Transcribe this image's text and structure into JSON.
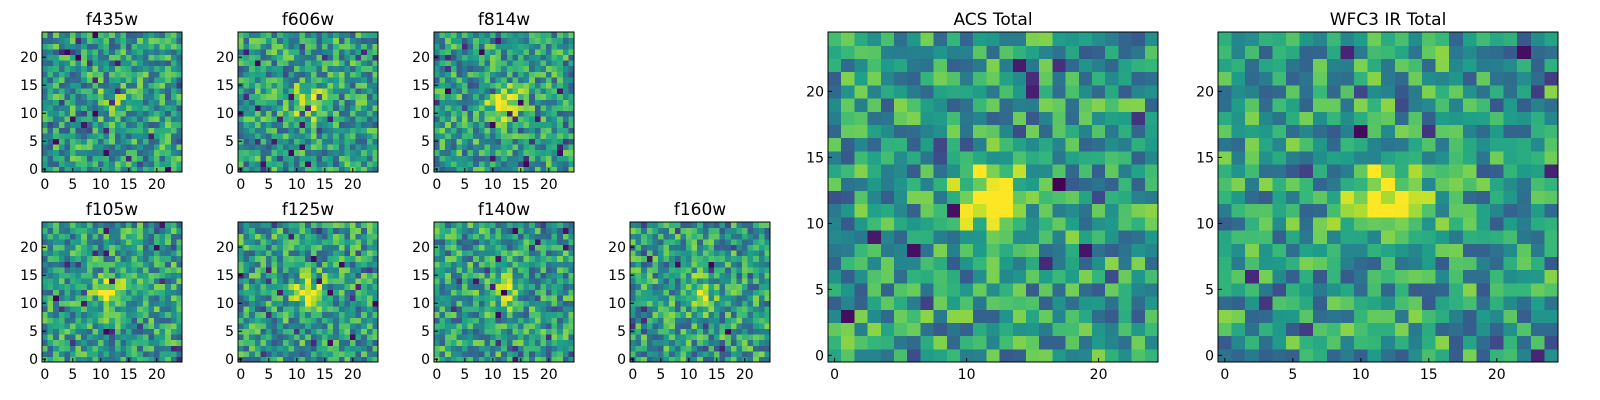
{
  "chart_data": [
    {
      "type": "heatmap",
      "title": "f435w",
      "size": 25,
      "cmap": "viridis",
      "seed": 11,
      "xticks": [
        0,
        5,
        10,
        15,
        20
      ],
      "yticks": [
        0,
        5,
        10,
        15,
        20
      ],
      "source_peak": 0.15
    },
    {
      "type": "heatmap",
      "title": "f606w",
      "size": 25,
      "cmap": "viridis",
      "seed": 23,
      "xticks": [
        0,
        5,
        10,
        15,
        20
      ],
      "yticks": [
        0,
        5,
        10,
        15,
        20
      ],
      "source_peak": 0.45
    },
    {
      "type": "heatmap",
      "title": "f814w",
      "size": 25,
      "cmap": "viridis",
      "seed": 37,
      "xticks": [
        0,
        5,
        10,
        15,
        20
      ],
      "yticks": [
        0,
        5,
        10,
        15,
        20
      ],
      "source_peak": 0.5
    },
    {
      "type": "heatmap",
      "title": "f105w",
      "size": 25,
      "cmap": "viridis",
      "seed": 41,
      "xticks": [
        0,
        5,
        10,
        15,
        20
      ],
      "yticks": [
        0,
        5,
        10,
        15,
        20
      ],
      "source_peak": 0.45
    },
    {
      "type": "heatmap",
      "title": "f125w",
      "size": 25,
      "cmap": "viridis",
      "seed": 53,
      "xticks": [
        0,
        5,
        10,
        15,
        20
      ],
      "yticks": [
        0,
        5,
        10,
        15,
        20
      ],
      "source_peak": 0.4
    },
    {
      "type": "heatmap",
      "title": "f140w",
      "size": 25,
      "cmap": "viridis",
      "seed": 67,
      "xticks": [
        0,
        5,
        10,
        15,
        20
      ],
      "yticks": [
        0,
        5,
        10,
        15,
        20
      ],
      "source_peak": 0.3
    },
    {
      "type": "heatmap",
      "title": "f160w",
      "size": 25,
      "cmap": "viridis",
      "seed": 79,
      "xticks": [
        0,
        5,
        10,
        15,
        20
      ],
      "yticks": [
        0,
        5,
        10,
        15,
        20
      ],
      "source_peak": 0.25
    },
    {
      "type": "heatmap",
      "title": "ACS Total",
      "size": 25,
      "cmap": "viridis",
      "seed": 97,
      "xticks": [
        0,
        10,
        20
      ],
      "yticks": [
        0,
        5,
        10,
        15,
        20
      ],
      "source_peak": 0.55
    },
    {
      "type": "heatmap",
      "title": "WFC3 IR Total",
      "size": 25,
      "cmap": "viridis",
      "seed": 131,
      "xticks": [
        0,
        5,
        10,
        15,
        20
      ],
      "yticks": [
        0,
        5,
        10,
        15,
        20
      ],
      "source_peak": 0.55
    }
  ]
}
